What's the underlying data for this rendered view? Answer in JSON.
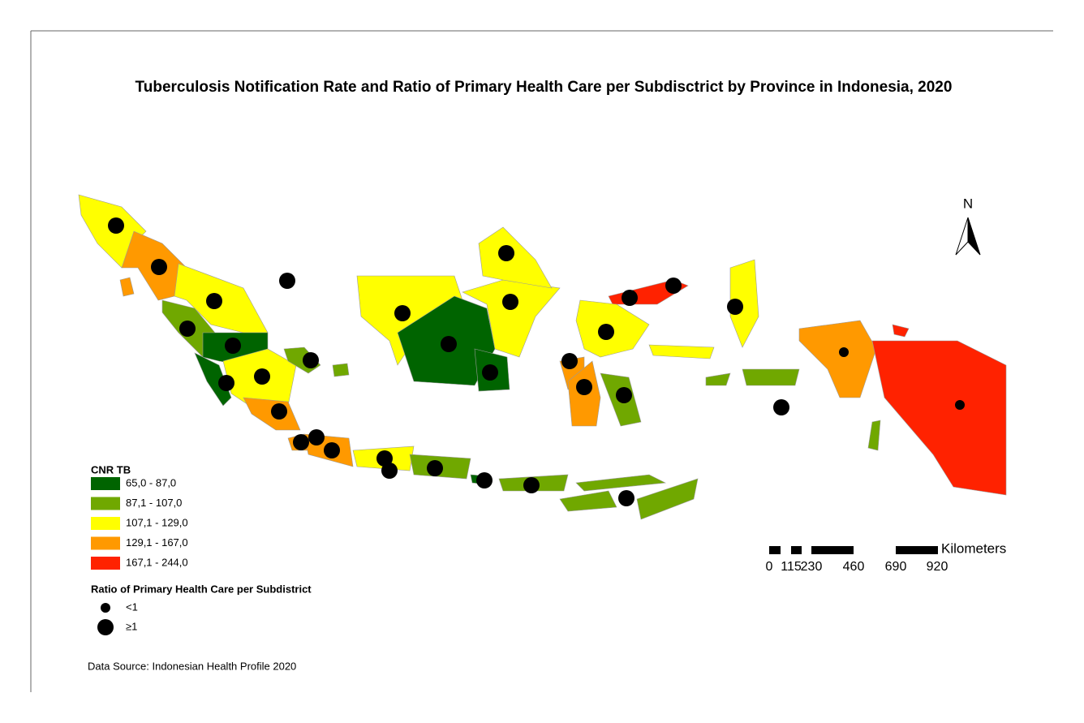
{
  "title": "Tuberculosis Notification Rate and Ratio of Primary Health Care per Subdisctrict by Province in Indonesia, 2020",
  "legend": {
    "title": "CNR TB",
    "items": [
      {
        "label": "65,0 - 87,0",
        "color": "#006400"
      },
      {
        "label": "87,1 - 107,0",
        "color": "#70a800"
      },
      {
        "label": "107,1 - 129,0",
        "color": "#ffff00"
      },
      {
        "label": "129,1 - 167,0",
        "color": "#ff9900"
      },
      {
        "label": "167,1 - 244,0",
        "color": "#ff2200"
      }
    ]
  },
  "ratio_legend": {
    "title": "Ratio of Primary Health Care per Subdistrict",
    "items": [
      "<1",
      "≥1"
    ]
  },
  "north": "N",
  "scale_bar": {
    "unit": "Kilometers",
    "labels": [
      "0",
      "115",
      "230",
      "460",
      "690",
      "920"
    ]
  },
  "source": "Data Source: Indonesian Health Profile 2020"
}
